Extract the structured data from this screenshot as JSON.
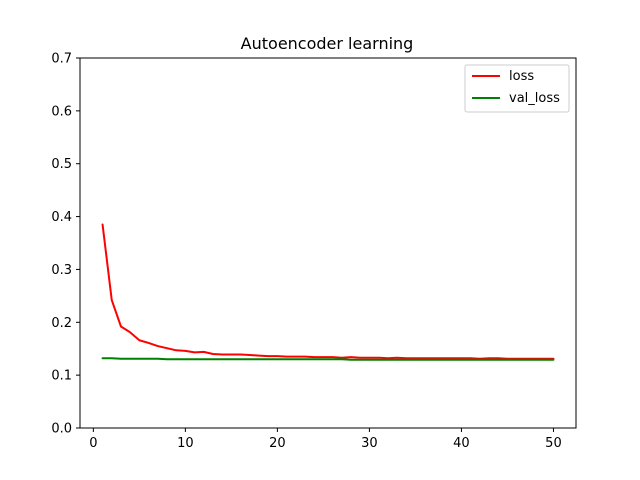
{
  "chart_data": {
    "type": "line",
    "title": "Autoencoder learning",
    "xlabel": "",
    "ylabel": "",
    "xlim": [
      -1.45,
      52.45
    ],
    "ylim": [
      0,
      0.7
    ],
    "xticks": [
      0,
      10,
      20,
      30,
      40,
      50
    ],
    "yticks": [
      0.0,
      0.1,
      0.2,
      0.3,
      0.4,
      0.5,
      0.6,
      0.7
    ],
    "xtick_labels": [
      "0",
      "10",
      "20",
      "30",
      "40",
      "50"
    ],
    "ytick_labels": [
      "0.0",
      "0.1",
      "0.2",
      "0.3",
      "0.4",
      "0.5",
      "0.6",
      "0.7"
    ],
    "grid": false,
    "legend_position": "top-right",
    "x": [
      1,
      2,
      3,
      4,
      5,
      6,
      7,
      8,
      9,
      10,
      11,
      12,
      13,
      14,
      15,
      16,
      17,
      18,
      19,
      20,
      21,
      22,
      23,
      24,
      25,
      26,
      27,
      28,
      29,
      30,
      31,
      32,
      33,
      34,
      35,
      36,
      37,
      38,
      39,
      40,
      41,
      42,
      43,
      44,
      45,
      46,
      47,
      48,
      49,
      50
    ],
    "series": [
      {
        "name": "loss",
        "color": "#ff0000",
        "values": [
          0.385,
          0.242,
          0.192,
          0.181,
          0.166,
          0.161,
          0.155,
          0.151,
          0.147,
          0.146,
          0.143,
          0.144,
          0.14,
          0.139,
          0.139,
          0.139,
          0.138,
          0.137,
          0.136,
          0.136,
          0.135,
          0.135,
          0.135,
          0.134,
          0.134,
          0.134,
          0.133,
          0.134,
          0.133,
          0.133,
          0.133,
          0.132,
          0.133,
          0.132,
          0.132,
          0.132,
          0.132,
          0.132,
          0.132,
          0.132,
          0.132,
          0.131,
          0.132,
          0.132,
          0.131,
          0.131,
          0.131,
          0.131,
          0.131,
          0.131
        ]
      },
      {
        "name": "val_loss",
        "color": "#008000",
        "values": [
          0.132,
          0.132,
          0.131,
          0.131,
          0.131,
          0.131,
          0.131,
          0.13,
          0.13,
          0.13,
          0.13,
          0.13,
          0.13,
          0.13,
          0.13,
          0.13,
          0.13,
          0.13,
          0.13,
          0.13,
          0.13,
          0.13,
          0.13,
          0.13,
          0.13,
          0.13,
          0.13,
          0.129,
          0.129,
          0.129,
          0.129,
          0.129,
          0.129,
          0.129,
          0.129,
          0.129,
          0.129,
          0.129,
          0.129,
          0.129,
          0.129,
          0.129,
          0.129,
          0.129,
          0.129,
          0.129,
          0.129,
          0.129,
          0.129,
          0.129
        ]
      }
    ]
  }
}
